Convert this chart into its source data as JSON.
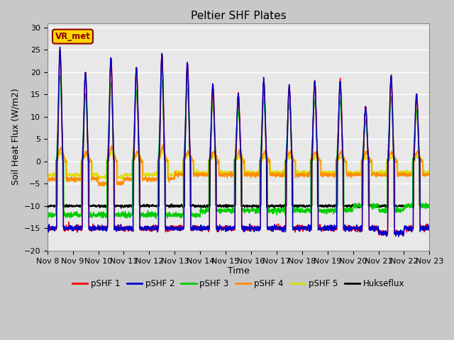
{
  "title": "Peltier SHF Plates",
  "xlabel": "Time",
  "ylabel": "Soil Heat Flux (W/m2)",
  "ylim": [
    -20,
    31
  ],
  "xlim": [
    0,
    15
  ],
  "plot_bg_color": "#e8e8e8",
  "fig_bg_color": "#c8c8c8",
  "annotation_text": "VR_met",
  "annotation_color": "#8B0000",
  "annotation_bg": "#FFD700",
  "series_colors": {
    "pSHF 1": "#FF0000",
    "pSHF 2": "#0000CC",
    "pSHF 3": "#00CC00",
    "pSHF 4": "#FF8C00",
    "pSHF 5": "#DDDD00",
    "Hukseflux": "#000000"
  },
  "x_tick_labels": [
    "Nov 8",
    "Nov 9",
    "Nov 10",
    "Nov 11",
    "Nov 12",
    "Nov 13",
    "Nov 14",
    "Nov 15",
    "Nov 16",
    "Nov 17",
    "Nov 18",
    "Nov 19",
    "Nov 20",
    "Nov 21",
    "Nov 22",
    "Nov 23"
  ],
  "n_days": 15,
  "samples_per_day": 144,
  "yticks": [
    -20,
    -15,
    -10,
    -5,
    0,
    5,
    10,
    15,
    20,
    25,
    30
  ],
  "title_fontsize": 11,
  "label_fontsize": 9,
  "tick_fontsize": 8
}
